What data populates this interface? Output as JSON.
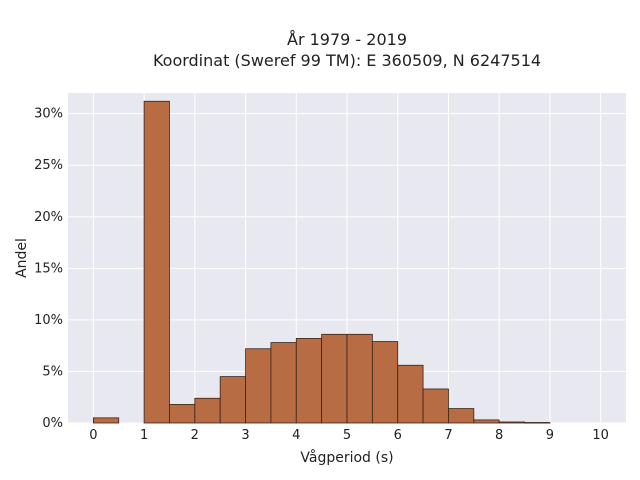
{
  "chart_data": {
    "type": "bar",
    "title_line1": "År 1979 - 2019",
    "title_line2": "Koordinat (Sweref 99 TM): E 360509, N 6247514",
    "xlabel": "Vågperiod (s)",
    "ylabel": "Andel",
    "bin_width": 0.5,
    "bins": [
      {
        "x0": 0.0,
        "value": 0.5
      },
      {
        "x0": 0.5,
        "value": 0.0
      },
      {
        "x0": 1.0,
        "value": 31.2
      },
      {
        "x0": 1.5,
        "value": 1.8
      },
      {
        "x0": 2.0,
        "value": 2.4
      },
      {
        "x0": 2.5,
        "value": 4.5
      },
      {
        "x0": 3.0,
        "value": 7.2
      },
      {
        "x0": 3.5,
        "value": 7.8
      },
      {
        "x0": 4.0,
        "value": 8.2
      },
      {
        "x0": 4.5,
        "value": 8.6
      },
      {
        "x0": 5.0,
        "value": 8.6
      },
      {
        "x0": 5.5,
        "value": 7.9
      },
      {
        "x0": 6.0,
        "value": 5.6
      },
      {
        "x0": 6.5,
        "value": 3.3
      },
      {
        "x0": 7.0,
        "value": 1.4
      },
      {
        "x0": 7.5,
        "value": 0.3
      },
      {
        "x0": 8.0,
        "value": 0.1
      },
      {
        "x0": 8.5,
        "value": 0.05
      },
      {
        "x0": 9.0,
        "value": 0.0
      },
      {
        "x0": 9.5,
        "value": 0.0
      }
    ],
    "xlim": [
      -0.5,
      10.5
    ],
    "ylim": [
      0,
      32
    ],
    "x_ticks": [
      0,
      1,
      2,
      3,
      4,
      5,
      6,
      7,
      8,
      9,
      10
    ],
    "y_ticks": [
      0,
      5,
      10,
      15,
      20,
      25,
      30
    ],
    "y_tick_suffix": "%",
    "grid": true,
    "colors": {
      "bar_fill": "#b5653a",
      "bar_edge": "#3a2418",
      "plot_bg": "#e8e8f0",
      "grid": "#ffffff"
    }
  }
}
